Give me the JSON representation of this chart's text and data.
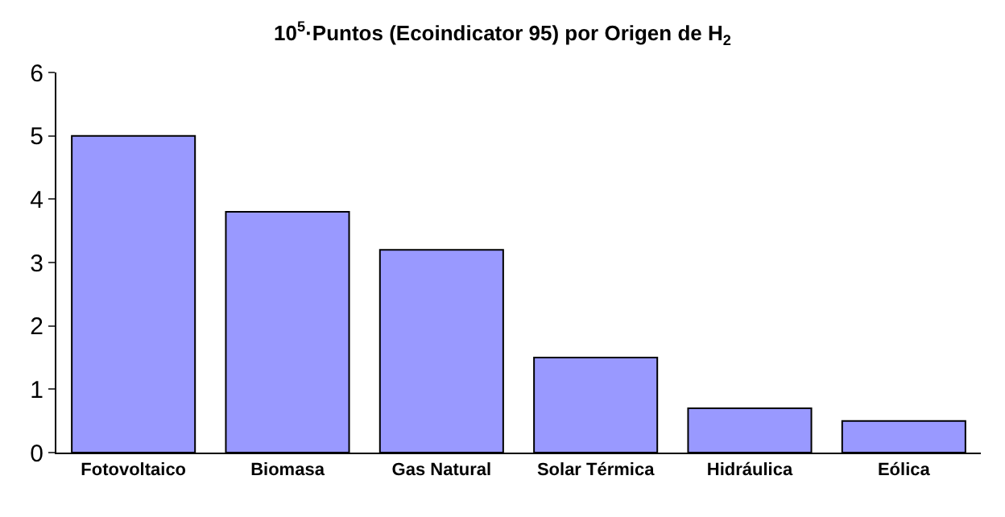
{
  "chart_data": {
    "type": "bar",
    "title": "10$^{5}$·Puntos (Ecoindicator 95) por Origen de H$_{2}$",
    "categories": [
      "Fotovoltaico",
      "Biomasa",
      "Gas Natural",
      "Solar Térmica",
      "Hidráulica",
      "Eólica"
    ],
    "values": [
      5.0,
      3.8,
      3.2,
      1.5,
      0.7,
      0.5
    ],
    "color": "#9999ff",
    "ylim": [
      0,
      6
    ],
    "yticks": [
      0,
      1,
      2,
      3,
      4,
      5,
      6
    ],
    "legend": false
  }
}
